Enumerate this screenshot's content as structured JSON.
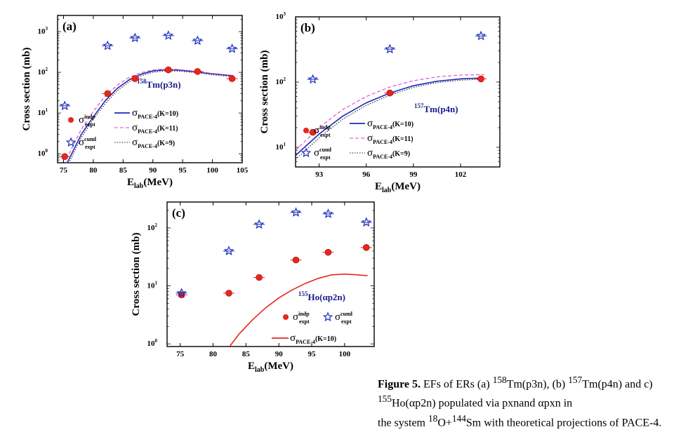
{
  "caption": {
    "label": "Figure 5.",
    "text1": " EFs of ERs (a) ",
    "t1_sup": "158",
    "t1": "Tm(p3n), (b) ",
    "t2_sup": "157",
    "t2": "Tm(p4n) and c) ",
    "t3_sup": "155",
    "t3": "Ho(αp2n) populated via pxnand αpxn in",
    "line2a": "the system ",
    "o_sup": "18",
    "o": "O+",
    "sm_sup": "144",
    "sm": "Sm with theoretical projections of PACE-4."
  },
  "chart_data": [
    {
      "id": "a",
      "type": "scatter",
      "panel_label": "(a)",
      "annotation": {
        "sup": "158",
        "text": "Tm(p3n)"
      },
      "xlabel": {
        "main": "E",
        "sub": "lab",
        "rest": "(MeV)"
      },
      "ylabel": "Cross section (mb)",
      "xlim": [
        74,
        105
      ],
      "ylim": [
        0.6,
        2500
      ],
      "yscale": "log",
      "xticks": [
        75,
        80,
        85,
        90,
        95,
        100,
        105
      ],
      "yticks": [
        1,
        10,
        100,
        1000
      ],
      "series": [
        {
          "name": "σ expt indp",
          "marker": "circle",
          "color": "#e8261c",
          "x": [
            75.2,
            82.4,
            87.0,
            92.6,
            97.5,
            103.3
          ],
          "y": [
            0.85,
            30,
            70,
            115,
            105,
            70
          ]
        },
        {
          "name": "σ expt cuml",
          "marker": "star",
          "color": "#1a2bb8",
          "x": [
            75.2,
            82.4,
            87.0,
            92.6,
            97.5,
            103.3
          ],
          "y": [
            15,
            450,
            700,
            800,
            600,
            380
          ]
        },
        {
          "name": "σ PACE-4 (K=10)",
          "line": "solid",
          "color": "#1a2bb8",
          "x": [
            75.5,
            78,
            80,
            82,
            84,
            86,
            88,
            90,
            92,
            94,
            96,
            98,
            100,
            103.5
          ],
          "y": [
            0.55,
            3,
            8,
            20,
            40,
            65,
            90,
            108,
            115,
            114,
            108,
            100,
            92,
            82
          ]
        },
        {
          "name": "σ PACE-4 (K=11)",
          "line": "dashed",
          "color": "#e43fd1",
          "x": [
            75.5,
            78,
            80,
            82,
            84,
            86,
            88,
            90,
            92,
            94,
            96,
            98,
            100,
            103.5
          ],
          "y": [
            0.75,
            4,
            11,
            26,
            48,
            75,
            98,
            114,
            120,
            118,
            111,
            102,
            94,
            84
          ]
        },
        {
          "name": "σ PACE-4 (K=9)",
          "line": "dotted",
          "color": "#222222",
          "x": [
            75.5,
            78,
            80,
            82,
            84,
            86,
            88,
            90,
            92,
            94,
            96,
            98,
            100,
            103.5
          ],
          "y": [
            0.45,
            2.5,
            7,
            17,
            35,
            58,
            82,
            100,
            108,
            108,
            102,
            95,
            87,
            78
          ]
        }
      ],
      "legend": [
        {
          "marker": "circle",
          "sym": "σ",
          "sup": "indp",
          "sub": "expt"
        },
        {
          "line": "solid",
          "sym": "σ",
          "sub": "PACE-4",
          "rest": "(K=10)"
        },
        {
          "line": "dashed",
          "sym": "σ",
          "sub": "PACE-4",
          "rest": "(K=11)"
        },
        {
          "marker": "star",
          "sym": "σ",
          "sup": "cuml",
          "sub": "expt"
        },
        {
          "line": "dotted",
          "sym": "σ",
          "sub": "PACE-4",
          "rest": "(K=9)"
        }
      ]
    },
    {
      "id": "b",
      "type": "scatter",
      "panel_label": "(b)",
      "annotation": {
        "sup": "157",
        "text": "Tm(p4n)"
      },
      "xlabel": {
        "main": "E",
        "sub": "lab",
        "rest": "(MeV)"
      },
      "ylabel": "Cross section (mb)",
      "xlim": [
        91.5,
        104.5
      ],
      "ylim": [
        5,
        1000
      ],
      "yscale": "log",
      "xticks": [
        93,
        96,
        99,
        102
      ],
      "yticks": [
        10,
        100,
        1000
      ],
      "series": [
        {
          "name": "σ expt indp",
          "marker": "circle",
          "color": "#e8261c",
          "x": [
            92.6,
            97.5,
            103.3
          ],
          "y": [
            17,
            68,
            112
          ]
        },
        {
          "name": "σ expt cuml",
          "marker": "star",
          "color": "#1a2bb8",
          "x": [
            92.6,
            97.5,
            103.3
          ],
          "y": [
            110,
            320,
            510
          ]
        },
        {
          "name": "σ PACE-4 (K=10)",
          "line": "solid",
          "color": "#1a2bb8",
          "x": [
            91.5,
            93,
            94.5,
            96,
            97.5,
            99,
            100.5,
            102,
            103.5
          ],
          "y": [
            7.5,
            16,
            30,
            48,
            68,
            88,
            103,
            112,
            116
          ]
        },
        {
          "name": "σ PACE-4 (K=11)",
          "line": "dashed",
          "color": "#e43fd1",
          "x": [
            91.5,
            93,
            94.5,
            96,
            97.5,
            99,
            100.5,
            102,
            103.5
          ],
          "y": [
            9,
            20,
            38,
            60,
            84,
            105,
            120,
            128,
            130
          ]
        },
        {
          "name": "σ PACE-4 (K=9)",
          "line": "dotted",
          "color": "#222222",
          "x": [
            91.5,
            93,
            94.5,
            96,
            97.5,
            99,
            100.5,
            102,
            103.5
          ],
          "y": [
            6.5,
            14,
            27,
            44,
            63,
            83,
            98,
            107,
            111
          ]
        }
      ],
      "legend": [
        {
          "marker": "circle",
          "sym": "σ",
          "sup": "indp",
          "sub": "expt"
        },
        {
          "line": "solid",
          "sym": "σ",
          "sub": "PACE-4",
          "rest": "(K=10)"
        },
        {
          "line": "dashed",
          "sym": "σ",
          "sub": "PACE-4",
          "rest": "(K=11)"
        },
        {
          "marker": "star",
          "sym": "σ",
          "sup": "cuml",
          "sub": "expt"
        },
        {
          "line": "dotted",
          "sym": "σ",
          "sub": "PACE-4",
          "rest": "(K=9)"
        }
      ]
    },
    {
      "id": "c",
      "type": "scatter",
      "panel_label": "(c)",
      "annotation": {
        "sup": "155",
        "text": "Ho(αp2n)"
      },
      "xlabel": {
        "main": "E",
        "sub": "lab",
        "rest": "(MeV)"
      },
      "ylabel": "Cross section (mb)",
      "xlim": [
        73,
        104.5
      ],
      "ylim": [
        0.9,
        280
      ],
      "yscale": "log",
      "xticks": [
        75,
        80,
        85,
        90,
        95,
        100
      ],
      "yticks": [
        1,
        10,
        100
      ],
      "series": [
        {
          "name": "σ expt indp",
          "marker": "circle",
          "color": "#e8261c",
          "x": [
            75.2,
            82.4,
            87.0,
            92.6,
            97.5,
            103.3
          ],
          "y": [
            7,
            7.5,
            14,
            28,
            38,
            46
          ]
        },
        {
          "name": "σ expt cuml",
          "marker": "star",
          "color": "#1a2bb8",
          "x": [
            75.2,
            82.4,
            87.0,
            92.6,
            97.5,
            103.3
          ],
          "y": [
            7.5,
            40,
            115,
            185,
            175,
            125
          ]
        },
        {
          "name": "σ PACE-4 (K=10)",
          "line": "solid",
          "color": "#e8261c",
          "x": [
            82.5,
            84,
            86,
            88,
            90,
            92,
            94,
            96,
            98,
            100,
            102,
            103.5
          ],
          "y": [
            0.9,
            1.5,
            2.6,
            4.2,
            6.2,
            8.5,
            11,
            13.5,
            15.5,
            16,
            15.5,
            15
          ]
        }
      ],
      "legend": [
        {
          "marker": "circle",
          "sym": "σ",
          "sup": "indp",
          "sub": "expt"
        },
        {
          "marker": "star",
          "sym": "σ",
          "sup": "cuml",
          "sub": "expt"
        },
        {
          "line": "solid",
          "sym": "σ",
          "sub": "PACE-4",
          "rest": "(K=10)"
        }
      ]
    }
  ]
}
